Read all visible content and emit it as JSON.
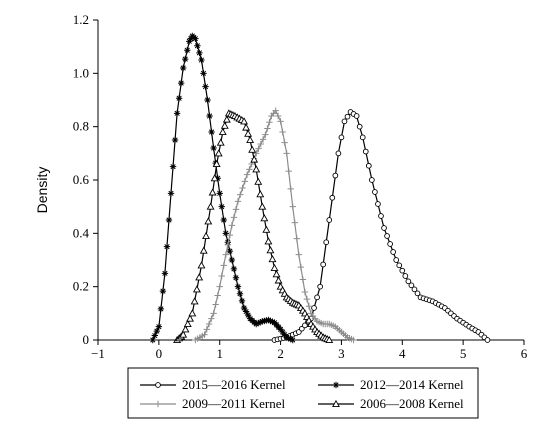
{
  "chart_data": {
    "type": "line",
    "title": "",
    "xlabel": "",
    "ylabel": "Density",
    "xlim": [
      -1,
      6
    ],
    "ylim": [
      0,
      1.2
    ],
    "x_ticks": [
      "−1",
      "0",
      "1",
      "2",
      "3",
      "4",
      "5",
      "6"
    ],
    "y_ticks": [
      "0",
      "0.2",
      "0.4",
      "0.6",
      "0.8",
      "1.0",
      "1.2"
    ],
    "grid": false,
    "legend_position": "bottom",
    "series": [
      {
        "name": "2015—2016 Kernel",
        "color": "#000000",
        "marker": "circle",
        "points": [
          [
            1.9,
            0
          ],
          [
            2.1,
            0.01
          ],
          [
            2.3,
            0.03
          ],
          [
            2.5,
            0.08
          ],
          [
            2.65,
            0.2
          ],
          [
            2.8,
            0.45
          ],
          [
            2.95,
            0.7
          ],
          [
            3.05,
            0.82
          ],
          [
            3.15,
            0.855
          ],
          [
            3.25,
            0.84
          ],
          [
            3.35,
            0.76
          ],
          [
            3.5,
            0.6
          ],
          [
            3.7,
            0.42
          ],
          [
            3.9,
            0.3
          ],
          [
            4.1,
            0.22
          ],
          [
            4.3,
            0.16
          ],
          [
            4.5,
            0.145
          ],
          [
            4.7,
            0.12
          ],
          [
            4.9,
            0.08
          ],
          [
            5.1,
            0.05
          ],
          [
            5.25,
            0.03
          ],
          [
            5.4,
            0
          ]
        ]
      },
      {
        "name": "2012—2014 Kernel",
        "color": "#000000",
        "marker": "asterisk",
        "points": [
          [
            -0.1,
            0
          ],
          [
            0,
            0.05
          ],
          [
            0.1,
            0.25
          ],
          [
            0.2,
            0.55
          ],
          [
            0.3,
            0.85
          ],
          [
            0.4,
            1.02
          ],
          [
            0.5,
            1.12
          ],
          [
            0.55,
            1.14
          ],
          [
            0.6,
            1.13
          ],
          [
            0.7,
            1.05
          ],
          [
            0.8,
            0.9
          ],
          [
            0.9,
            0.72
          ],
          [
            1.0,
            0.55
          ],
          [
            1.1,
            0.4
          ],
          [
            1.2,
            0.3
          ],
          [
            1.3,
            0.2
          ],
          [
            1.4,
            0.12
          ],
          [
            1.5,
            0.08
          ],
          [
            1.6,
            0.06
          ],
          [
            1.7,
            0.07
          ],
          [
            1.8,
            0.075
          ],
          [
            1.9,
            0.065
          ],
          [
            2.0,
            0.04
          ],
          [
            2.1,
            0.01
          ],
          [
            2.2,
            0
          ]
        ]
      },
      {
        "name": "2009—2011 Kernel",
        "color": "#8c8c8c",
        "marker": "plus",
        "points": [
          [
            0.6,
            0
          ],
          [
            0.75,
            0.02
          ],
          [
            0.9,
            0.1
          ],
          [
            1.0,
            0.2
          ],
          [
            1.1,
            0.32
          ],
          [
            1.2,
            0.43
          ],
          [
            1.3,
            0.52
          ],
          [
            1.45,
            0.62
          ],
          [
            1.6,
            0.7
          ],
          [
            1.75,
            0.77
          ],
          [
            1.85,
            0.84
          ],
          [
            1.92,
            0.86
          ],
          [
            2.0,
            0.82
          ],
          [
            2.1,
            0.7
          ],
          [
            2.2,
            0.5
          ],
          [
            2.3,
            0.32
          ],
          [
            2.4,
            0.18
          ],
          [
            2.5,
            0.1
          ],
          [
            2.6,
            0.07
          ],
          [
            2.7,
            0.06
          ],
          [
            2.8,
            0.06
          ],
          [
            2.9,
            0.05
          ],
          [
            3.0,
            0.03
          ],
          [
            3.1,
            0.01
          ],
          [
            3.2,
            0
          ]
        ]
      },
      {
        "name": "2006—2008 Kernel",
        "color": "#000000",
        "marker": "triangle",
        "points": [
          [
            0.3,
            0
          ],
          [
            0.4,
            0.02
          ],
          [
            0.55,
            0.1
          ],
          [
            0.7,
            0.28
          ],
          [
            0.85,
            0.5
          ],
          [
            0.95,
            0.66
          ],
          [
            1.05,
            0.78
          ],
          [
            1.15,
            0.85
          ],
          [
            1.25,
            0.84
          ],
          [
            1.4,
            0.82
          ],
          [
            1.5,
            0.75
          ],
          [
            1.6,
            0.64
          ],
          [
            1.7,
            0.5
          ],
          [
            1.8,
            0.37
          ],
          [
            1.9,
            0.27
          ],
          [
            2.0,
            0.2
          ],
          [
            2.1,
            0.16
          ],
          [
            2.2,
            0.14
          ],
          [
            2.3,
            0.13
          ],
          [
            2.4,
            0.1
          ],
          [
            2.5,
            0.06
          ],
          [
            2.6,
            0.03
          ],
          [
            2.7,
            0.01
          ],
          [
            2.8,
            0
          ]
        ]
      }
    ]
  }
}
